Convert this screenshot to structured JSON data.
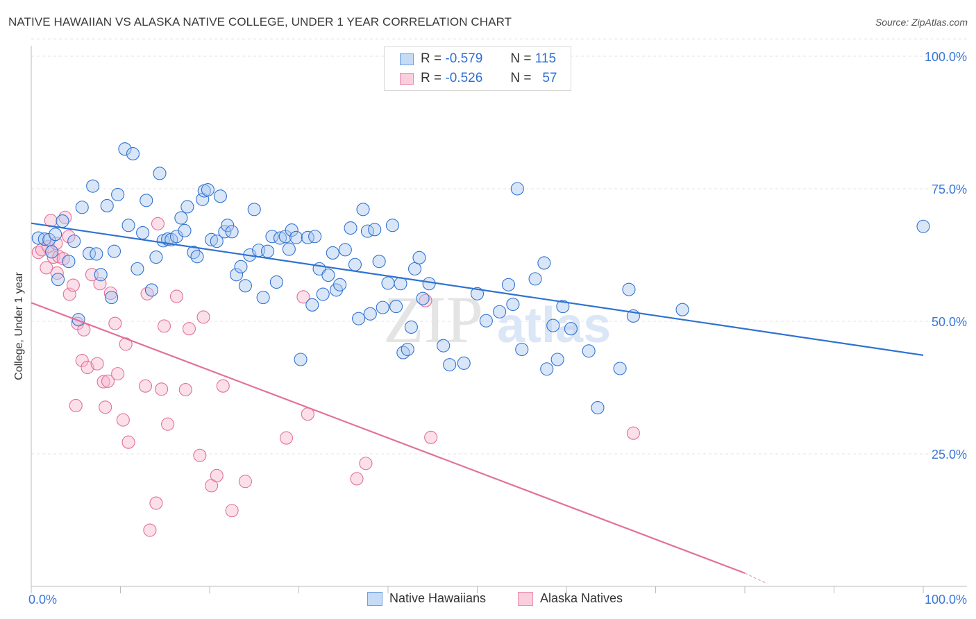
{
  "header": {
    "title": "NATIVE HAWAIIAN VS ALASKA NATIVE COLLEGE, UNDER 1 YEAR CORRELATION CHART",
    "source": "Source: ZipAtlas.com"
  },
  "legend": {
    "r_label": "R =",
    "n_label": "N =",
    "rows": [
      {
        "r": "-0.579",
        "n": "115"
      },
      {
        "r": "-0.526",
        "n": "57"
      }
    ]
  },
  "watermark": {
    "zip": "ZIP",
    "atlas": "atlas"
  },
  "colors": {
    "blue": "#2f72d1",
    "blue_fill": "#aac8f0",
    "pink": "#e2709a",
    "pink_fill": "#f6b8ce",
    "tick_label": "#3a78d8",
    "grid": "#e3e3e3"
  },
  "chart_data": {
    "type": "scatter",
    "title": "NATIVE HAWAIIAN VS ALASKA NATIVE COLLEGE, UNDER 1 YEAR CORRELATION CHART",
    "xlabel": "",
    "ylabel": "College, Under 1 year",
    "xlim": [
      0,
      100
    ],
    "ylim": [
      0,
      103
    ],
    "x_tick_labels": [
      "0.0%",
      "100.0%"
    ],
    "y_ticks": [
      25,
      50,
      75,
      100
    ],
    "y_tick_labels": [
      "25.0%",
      "50.0%",
      "75.0%",
      "100.0%"
    ],
    "grid": "horizontal dashed",
    "legend_position": "top-center",
    "series": [
      {
        "name": "Native Hawaiians",
        "r": -0.579,
        "n": 115,
        "trend": {
          "x": [
            0,
            100
          ],
          "y": [
            68.5,
            43.6
          ]
        },
        "points": [
          [
            0.8,
            65.7
          ],
          [
            1.5,
            65.5
          ],
          [
            2.0,
            65.4
          ],
          [
            2.3,
            63.1
          ],
          [
            2.7,
            66.4
          ],
          [
            3.0,
            57.9
          ],
          [
            3.5,
            68.9
          ],
          [
            4.2,
            61.3
          ],
          [
            4.8,
            65.1
          ],
          [
            5.3,
            50.3
          ],
          [
            5.7,
            71.5
          ],
          [
            6.5,
            62.8
          ],
          [
            6.9,
            75.5
          ],
          [
            7.3,
            62.7
          ],
          [
            7.8,
            58.8
          ],
          [
            8.5,
            71.8
          ],
          [
            9.0,
            54.5
          ],
          [
            9.3,
            63.2
          ],
          [
            9.7,
            73.9
          ],
          [
            10.5,
            82.5
          ],
          [
            10.9,
            68.1
          ],
          [
            11.4,
            81.6
          ],
          [
            11.9,
            59.9
          ],
          [
            12.5,
            66.7
          ],
          [
            12.9,
            72.8
          ],
          [
            13.5,
            55.9
          ],
          [
            14.0,
            62.1
          ],
          [
            14.4,
            77.9
          ],
          [
            14.8,
            65.2
          ],
          [
            15.3,
            65.5
          ],
          [
            15.7,
            65.4
          ],
          [
            16.3,
            66.0
          ],
          [
            16.8,
            69.5
          ],
          [
            17.2,
            67.1
          ],
          [
            17.5,
            71.6
          ],
          [
            18.2,
            63.0
          ],
          [
            18.6,
            62.2
          ],
          [
            19.2,
            73.0
          ],
          [
            19.4,
            74.6
          ],
          [
            19.8,
            74.8
          ],
          [
            20.2,
            65.4
          ],
          [
            20.8,
            65.1
          ],
          [
            21.2,
            73.6
          ],
          [
            21.7,
            66.9
          ],
          [
            22.0,
            68.1
          ],
          [
            22.5,
            66.9
          ],
          [
            23.0,
            58.8
          ],
          [
            23.5,
            60.3
          ],
          [
            24.0,
            56.7
          ],
          [
            24.5,
            62.5
          ],
          [
            25.0,
            71.1
          ],
          [
            25.5,
            63.4
          ],
          [
            26.0,
            54.5
          ],
          [
            26.5,
            63.2
          ],
          [
            27.0,
            66.0
          ],
          [
            27.5,
            57.4
          ],
          [
            27.9,
            65.7
          ],
          [
            28.5,
            66.0
          ],
          [
            28.9,
            63.6
          ],
          [
            29.2,
            67.2
          ],
          [
            29.7,
            65.8
          ],
          [
            30.2,
            42.8
          ],
          [
            31.0,
            65.8
          ],
          [
            31.5,
            53.1
          ],
          [
            31.8,
            66.0
          ],
          [
            32.3,
            59.9
          ],
          [
            32.7,
            55.1
          ],
          [
            33.3,
            58.7
          ],
          [
            33.8,
            62.9
          ],
          [
            34.2,
            55.9
          ],
          [
            34.6,
            56.9
          ],
          [
            35.2,
            63.5
          ],
          [
            35.8,
            67.6
          ],
          [
            36.3,
            60.7
          ],
          [
            36.7,
            50.5
          ],
          [
            37.2,
            71.1
          ],
          [
            37.7,
            67.0
          ],
          [
            38.0,
            51.4
          ],
          [
            38.5,
            67.3
          ],
          [
            39.0,
            61.3
          ],
          [
            39.4,
            52.6
          ],
          [
            40.0,
            57.2
          ],
          [
            40.5,
            68.1
          ],
          [
            40.9,
            52.8
          ],
          [
            41.4,
            57.1
          ],
          [
            41.7,
            44.1
          ],
          [
            42.2,
            44.7
          ],
          [
            42.6,
            48.9
          ],
          [
            43.0,
            59.9
          ],
          [
            43.5,
            62.0
          ],
          [
            43.9,
            54.3
          ],
          [
            44.6,
            57.1
          ],
          [
            46.2,
            45.4
          ],
          [
            46.9,
            41.8
          ],
          [
            48.5,
            42.1
          ],
          [
            50.0,
            55.2
          ],
          [
            51.0,
            50.1
          ],
          [
            52.5,
            51.8
          ],
          [
            53.5,
            56.9
          ],
          [
            54.0,
            53.2
          ],
          [
            54.5,
            75.0
          ],
          [
            55.0,
            44.7
          ],
          [
            56.5,
            58.0
          ],
          [
            57.5,
            61.0
          ],
          [
            57.8,
            41.0
          ],
          [
            58.5,
            49.2
          ],
          [
            59.0,
            42.8
          ],
          [
            59.6,
            52.8
          ],
          [
            60.5,
            48.6
          ],
          [
            62.5,
            44.4
          ],
          [
            63.5,
            33.7
          ],
          [
            66.0,
            41.1
          ],
          [
            67.0,
            56.0
          ],
          [
            67.5,
            51.0
          ],
          [
            73.0,
            52.2
          ],
          [
            100.0,
            67.9
          ]
        ]
      },
      {
        "name": "Alaska Natives",
        "r": -0.526,
        "n": 57,
        "trend": {
          "x": [
            0,
            80
          ],
          "y": [
            53.5,
            2.5
          ]
        },
        "trend_dashed": {
          "x": [
            80,
            82.5
          ],
          "y": [
            2.5,
            0.5
          ]
        },
        "points": [
          [
            0.8,
            63.0
          ],
          [
            1.2,
            63.5
          ],
          [
            1.7,
            60.1
          ],
          [
            1.9,
            64.1
          ],
          [
            2.2,
            69.0
          ],
          [
            2.5,
            62.1
          ],
          [
            2.8,
            64.7
          ],
          [
            2.9,
            59.1
          ],
          [
            3.1,
            62.2
          ],
          [
            3.6,
            61.8
          ],
          [
            3.8,
            69.6
          ],
          [
            4.2,
            66.0
          ],
          [
            4.3,
            55.1
          ],
          [
            4.7,
            56.8
          ],
          [
            5.0,
            34.1
          ],
          [
            5.2,
            49.6
          ],
          [
            5.7,
            42.6
          ],
          [
            5.9,
            48.4
          ],
          [
            6.3,
            41.3
          ],
          [
            6.8,
            58.8
          ],
          [
            7.4,
            42.0
          ],
          [
            7.7,
            57.1
          ],
          [
            8.1,
            38.6
          ],
          [
            8.3,
            33.8
          ],
          [
            8.6,
            38.7
          ],
          [
            8.9,
            55.3
          ],
          [
            9.4,
            49.6
          ],
          [
            9.7,
            40.1
          ],
          [
            10.3,
            31.4
          ],
          [
            10.6,
            45.7
          ],
          [
            10.9,
            27.2
          ],
          [
            12.8,
            37.8
          ],
          [
            13.0,
            55.2
          ],
          [
            13.3,
            10.6
          ],
          [
            14.0,
            15.7
          ],
          [
            14.2,
            68.4
          ],
          [
            14.6,
            37.2
          ],
          [
            14.9,
            49.1
          ],
          [
            15.3,
            30.6
          ],
          [
            16.3,
            54.7
          ],
          [
            17.3,
            37.1
          ],
          [
            17.7,
            48.6
          ],
          [
            18.9,
            24.7
          ],
          [
            19.3,
            50.8
          ],
          [
            20.2,
            19.0
          ],
          [
            20.8,
            20.9
          ],
          [
            21.5,
            37.8
          ],
          [
            22.5,
            14.3
          ],
          [
            24.0,
            19.8
          ],
          [
            28.6,
            28.0
          ],
          [
            30.5,
            54.6
          ],
          [
            31.0,
            32.5
          ],
          [
            36.5,
            20.3
          ],
          [
            37.5,
            23.2
          ],
          [
            44.2,
            53.9
          ],
          [
            44.8,
            28.1
          ],
          [
            67.5,
            28.9
          ]
        ]
      }
    ]
  }
}
